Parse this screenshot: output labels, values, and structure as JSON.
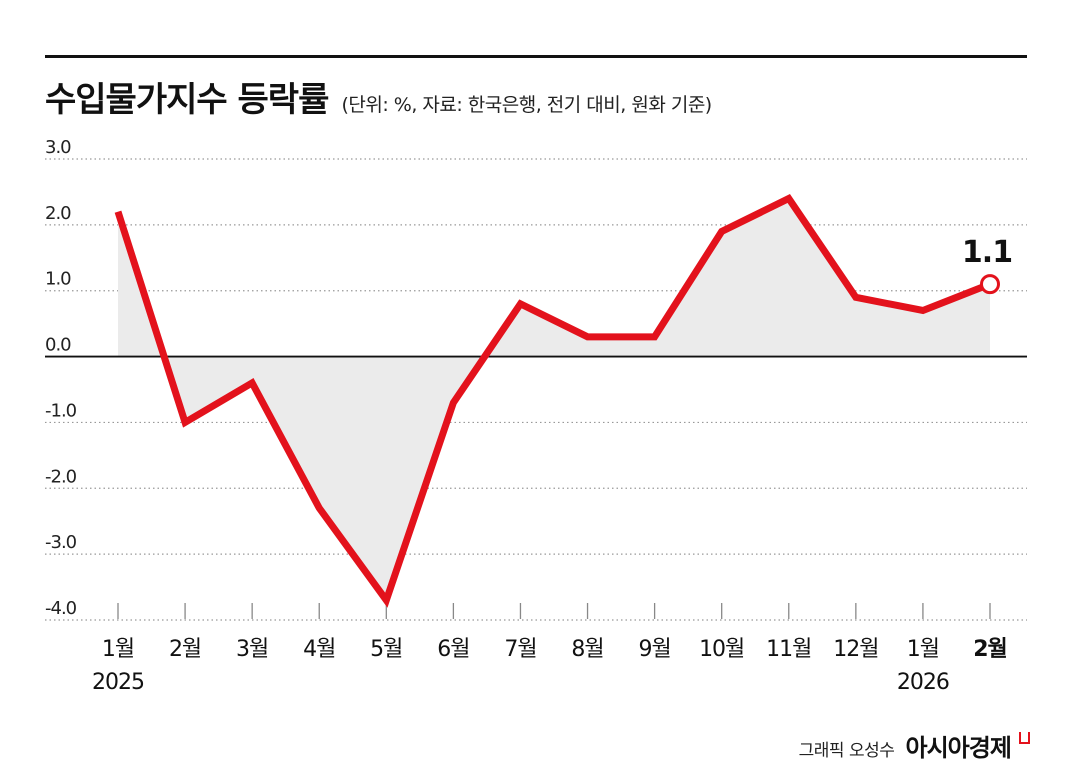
{
  "header": {
    "title": "수입물가지수 등락률",
    "subtitle": "(단위: %, 자료: 한국은행, 전기 대비, 원화 기준)"
  },
  "credit": {
    "text": "그래픽 오성수",
    "brand": "아시아경제"
  },
  "colors": {
    "line": "#e3121c",
    "fill": "#ebebeb",
    "grid": "#999999",
    "zero_line": "#111111"
  },
  "chart_data": {
    "type": "line",
    "title": "수입물가지수 등락률",
    "categories": [
      "1월",
      "2월",
      "3월",
      "4월",
      "5월",
      "6월",
      "7월",
      "8월",
      "9월",
      "10월",
      "11월",
      "12월",
      "1월",
      "2월"
    ],
    "year_labels": [
      "2025",
      "",
      "",
      "",
      "",
      "",
      "",
      "",
      "",
      "",
      "",
      "",
      "2026",
      ""
    ],
    "series": [
      {
        "values": [
          2.2,
          -1.0,
          -0.4,
          -2.3,
          -3.7,
          -0.7,
          0.8,
          0.3,
          0.3,
          1.9,
          2.4,
          0.9,
          0.7,
          1.1
        ]
      }
    ],
    "yticks": [
      3.0,
      2.0,
      1.0,
      0.0,
      -1.0,
      -2.0,
      -3.0,
      -4.0
    ],
    "ytick_labels": [
      "3.0",
      "2.0",
      "1.0",
      "0.0",
      "-1.0",
      "-2.0",
      "-3.0",
      "-4.0"
    ],
    "ylim": [
      -4.0,
      3.0
    ],
    "highlight": {
      "index": 13,
      "label": "1.1"
    },
    "grid": "dotted horizontal",
    "area_fill": true
  }
}
